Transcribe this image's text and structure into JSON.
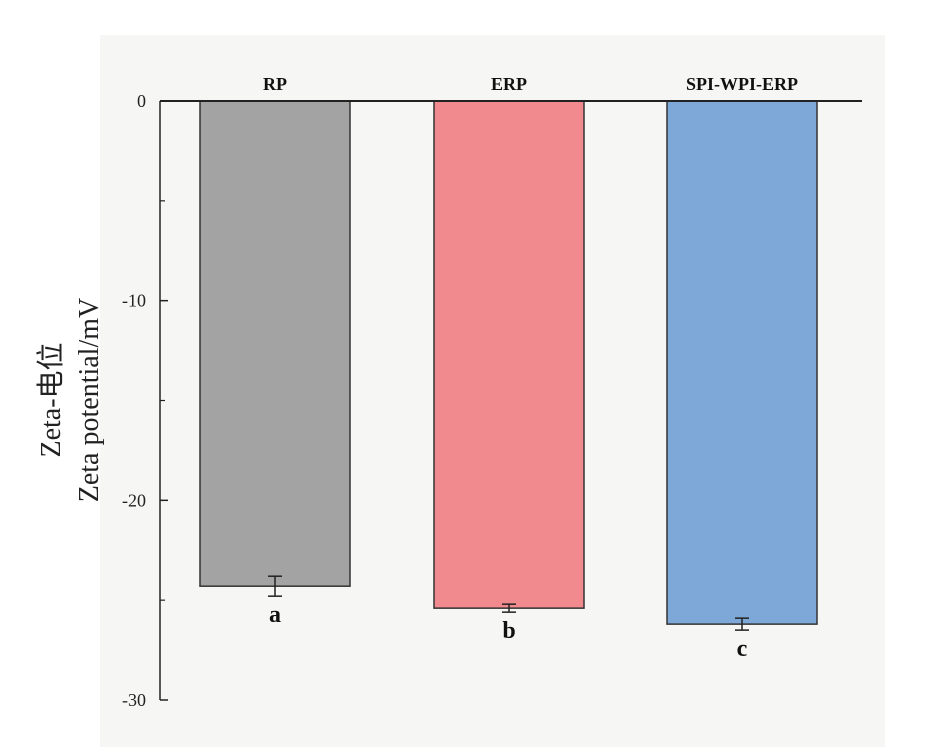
{
  "chart_data": {
    "type": "bar",
    "categories": [
      "RP",
      "ERP",
      "SPI-WPI-ERP"
    ],
    "values": [
      -24.3,
      -25.4,
      -26.2
    ],
    "errors": [
      0.5,
      0.2,
      0.3
    ],
    "significance_letters": [
      "a",
      "b",
      "c"
    ],
    "colors": [
      "#a3a3a3",
      "#f08a8e",
      "#7ea8d8"
    ],
    "ylabel_lines": [
      "Zeta-电位",
      "Zeta  potential/mV"
    ],
    "xlabel": "",
    "ylim": [
      -30,
      0
    ],
    "yticks": [
      0,
      -10,
      -20,
      -30
    ],
    "ytick_labels": [
      "0",
      "-10",
      "-20",
      "-30"
    ],
    "category_label_position": "top"
  }
}
